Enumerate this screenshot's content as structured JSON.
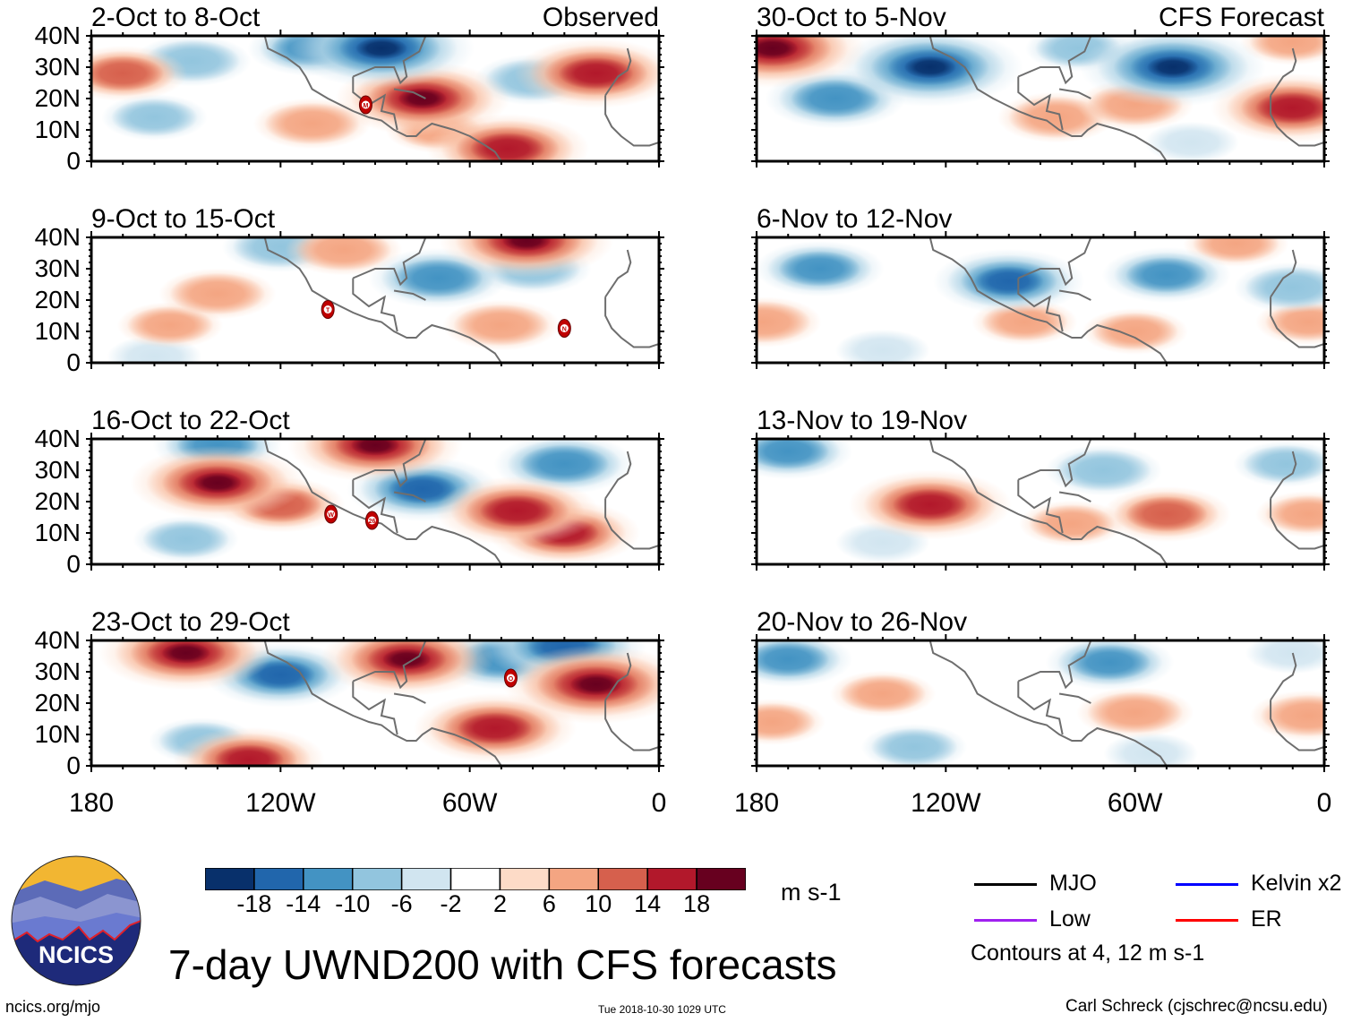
{
  "chart_data": {
    "type": "heatmap",
    "title": "7-day UWND200 with CFS forecasts",
    "variable": "200-hPa zonal wind anomaly (7-day mean) with filtered wave contours",
    "units": "m s-1",
    "domain": {
      "lon_range": [
        -180,
        0
      ],
      "lat_range": [
        0,
        40
      ]
    },
    "xticks": [
      {
        "lon": -180,
        "label": "180"
      },
      {
        "lon": -120,
        "label": "120W"
      },
      {
        "lon": -60,
        "label": "60W"
      },
      {
        "lon": 0,
        "label": "0"
      }
    ],
    "yticks": [
      {
        "lat": 40,
        "label": "40N"
      },
      {
        "lat": 30,
        "label": "30N"
      },
      {
        "lat": 20,
        "label": "20N"
      },
      {
        "lat": 10,
        "label": "10N"
      },
      {
        "lat": 0,
        "label": "0"
      }
    ],
    "columns": [
      {
        "tag": "Observed",
        "panels": [
          {
            "title": "2-Oct to 8-Oct",
            "storms": [
              {
                "letter": "M",
                "lon": -93,
                "lat": 18
              }
            ],
            "anomalies": [
              {
                "lon": -88,
                "lat": 36,
                "value": -20
              },
              {
                "lon": -110,
                "lat": 36,
                "value": -10
              },
              {
                "lon": -148,
                "lat": 32,
                "value": -8
              },
              {
                "lon": -40,
                "lat": 26,
                "value": -8
              },
              {
                "lon": -160,
                "lat": 14,
                "value": -6
              },
              {
                "lon": -170,
                "lat": 28,
                "value": 10
              },
              {
                "lon": -20,
                "lat": 28,
                "value": 16
              },
              {
                "lon": -75,
                "lat": 20,
                "value": 18
              },
              {
                "lon": -48,
                "lat": 4,
                "value": 16
              },
              {
                "lon": -110,
                "lat": 12,
                "value": 8
              },
              {
                "lon": -70,
                "lat": 10,
                "value": 6
              }
            ]
          },
          {
            "title": "9-Oct to 15-Oct",
            "storms": [
              {
                "letter": "T",
                "lon": -105,
                "lat": 17
              },
              {
                "letter": "N",
                "lon": -30,
                "lat": 11
              }
            ],
            "anomalies": [
              {
                "lon": -70,
                "lat": 27,
                "value": -12
              },
              {
                "lon": -120,
                "lat": 37,
                "value": -8
              },
              {
                "lon": -40,
                "lat": 30,
                "value": -8
              },
              {
                "lon": -160,
                "lat": 2,
                "value": -4
              },
              {
                "lon": -140,
                "lat": 22,
                "value": 8
              },
              {
                "lon": -155,
                "lat": 12,
                "value": 6
              },
              {
                "lon": -100,
                "lat": 36,
                "value": 8
              },
              {
                "lon": -42,
                "lat": 39,
                "value": 18
              },
              {
                "lon": -50,
                "lat": 12,
                "value": 8
              }
            ]
          },
          {
            "title": "16-Oct to 22-Oct",
            "storms": [
              {
                "letter": "W",
                "lon": -104,
                "lat": 16
              },
              {
                "letter": "26",
                "lon": -91,
                "lat": 14
              }
            ],
            "anomalies": [
              {
                "lon": -140,
                "lat": 38,
                "value": -10
              },
              {
                "lon": -75,
                "lat": 24,
                "value": -14
              },
              {
                "lon": -30,
                "lat": 32,
                "value": -12
              },
              {
                "lon": -150,
                "lat": 8,
                "value": -6
              },
              {
                "lon": -140,
                "lat": 26,
                "value": 18
              },
              {
                "lon": -120,
                "lat": 19,
                "value": 10
              },
              {
                "lon": -90,
                "lat": 38,
                "value": 18
              },
              {
                "lon": -45,
                "lat": 17,
                "value": 16
              },
              {
                "lon": -30,
                "lat": 10,
                "value": 14
              }
            ]
          },
          {
            "title": "23-Oct to 29-Oct",
            "storms": [
              {
                "letter": "O",
                "lon": -47,
                "lat": 28
              }
            ],
            "anomalies": [
              {
                "lon": -120,
                "lat": 29,
                "value": -14
              },
              {
                "lon": -50,
                "lat": 34,
                "value": -12
              },
              {
                "lon": -30,
                "lat": 38,
                "value": -16
              },
              {
                "lon": -145,
                "lat": 8,
                "value": -6
              },
              {
                "lon": -150,
                "lat": 36,
                "value": 18
              },
              {
                "lon": -80,
                "lat": 34,
                "value": 18
              },
              {
                "lon": -52,
                "lat": 12,
                "value": 16
              },
              {
                "lon": -20,
                "lat": 26,
                "value": 20
              },
              {
                "lon": -130,
                "lat": 2,
                "value": 14
              }
            ]
          }
        ]
      },
      {
        "tag": "CFS Forecast",
        "panels": [
          {
            "title": "30-Oct to 5-Nov",
            "storms": [],
            "anomalies": [
              {
                "lon": -125,
                "lat": 30,
                "value": -20
              },
              {
                "lon": -48,
                "lat": 30,
                "value": -20
              },
              {
                "lon": -155,
                "lat": 20,
                "value": -12
              },
              {
                "lon": -78,
                "lat": 36,
                "value": -6
              },
              {
                "lon": -42,
                "lat": 6,
                "value": -4
              },
              {
                "lon": -175,
                "lat": 36,
                "value": 20
              },
              {
                "lon": -10,
                "lat": 17,
                "value": 16
              },
              {
                "lon": -85,
                "lat": 14,
                "value": 8
              },
              {
                "lon": -60,
                "lat": 18,
                "value": 8
              },
              {
                "lon": -10,
                "lat": 38,
                "value": 6
              }
            ]
          },
          {
            "title": "6-Nov to 12-Nov",
            "storms": [],
            "anomalies": [
              {
                "lon": -100,
                "lat": 26,
                "value": -14
              },
              {
                "lon": -160,
                "lat": 30,
                "value": -10
              },
              {
                "lon": -50,
                "lat": 28,
                "value": -10
              },
              {
                "lon": -10,
                "lat": 24,
                "value": -8
              },
              {
                "lon": -140,
                "lat": 4,
                "value": -4
              },
              {
                "lon": -178,
                "lat": 13,
                "value": 8
              },
              {
                "lon": -95,
                "lat": 13,
                "value": 6
              },
              {
                "lon": -60,
                "lat": 10,
                "value": 6
              },
              {
                "lon": -28,
                "lat": 38,
                "value": 6
              },
              {
                "lon": -5,
                "lat": 13,
                "value": 6
              }
            ]
          },
          {
            "title": "13-Nov to 19-Nov",
            "storms": [],
            "anomalies": [
              {
                "lon": -170,
                "lat": 36,
                "value": -10
              },
              {
                "lon": -70,
                "lat": 30,
                "value": -8
              },
              {
                "lon": -12,
                "lat": 32,
                "value": -6
              },
              {
                "lon": -140,
                "lat": 7,
                "value": -4
              },
              {
                "lon": -125,
                "lat": 19,
                "value": 16
              },
              {
                "lon": -50,
                "lat": 16,
                "value": 10
              },
              {
                "lon": -80,
                "lat": 13,
                "value": 6
              },
              {
                "lon": -5,
                "lat": 16,
                "value": 6
              }
            ]
          },
          {
            "title": "20-Nov to 26-Nov",
            "storms": [],
            "anomalies": [
              {
                "lon": -170,
                "lat": 34,
                "value": -10
              },
              {
                "lon": -68,
                "lat": 33,
                "value": -10
              },
              {
                "lon": -130,
                "lat": 6,
                "value": -6
              },
              {
                "lon": -55,
                "lat": 4,
                "value": -4
              },
              {
                "lon": -10,
                "lat": 36,
                "value": -4
              },
              {
                "lon": -140,
                "lat": 23,
                "value": 6
              },
              {
                "lon": -60,
                "lat": 17,
                "value": 8
              },
              {
                "lon": -175,
                "lat": 14,
                "value": 6
              },
              {
                "lon": -5,
                "lat": 16,
                "value": 8
              }
            ]
          }
        ]
      }
    ],
    "colorbar": {
      "levels": [
        -18,
        -14,
        -10,
        -6,
        -2,
        2,
        6,
        10,
        14,
        18
      ],
      "labels": [
        "-18",
        "-14",
        "-10",
        "-6",
        "-2",
        "2",
        "6",
        "10",
        "14",
        "18"
      ],
      "colors": [
        "#08306b",
        "#2166ac",
        "#4393c3",
        "#92c5de",
        "#d1e5f0",
        "#ffffff",
        "#fddbc7",
        "#f4a582",
        "#d6604d",
        "#b2182b",
        "#67001f"
      ],
      "units": "m s-1"
    },
    "legend": {
      "entries": [
        {
          "label": "MJO",
          "color": "#000000"
        },
        {
          "label": "Kelvin x2",
          "color": "#0000ff"
        },
        {
          "label": "Low",
          "color": "#a020f0"
        },
        {
          "label": "ER",
          "color": "#ff0000"
        }
      ],
      "note": "Contours at 4, 12 m s-1"
    },
    "land_color": "#6e6e6e"
  },
  "footer": {
    "logo_text": "NCICS",
    "site": "ncics.org/mjo",
    "timestamp": "Tue 2018-10-30 1029 UTC",
    "author": "Carl Schreck (cjschrec@ncsu.edu)"
  }
}
